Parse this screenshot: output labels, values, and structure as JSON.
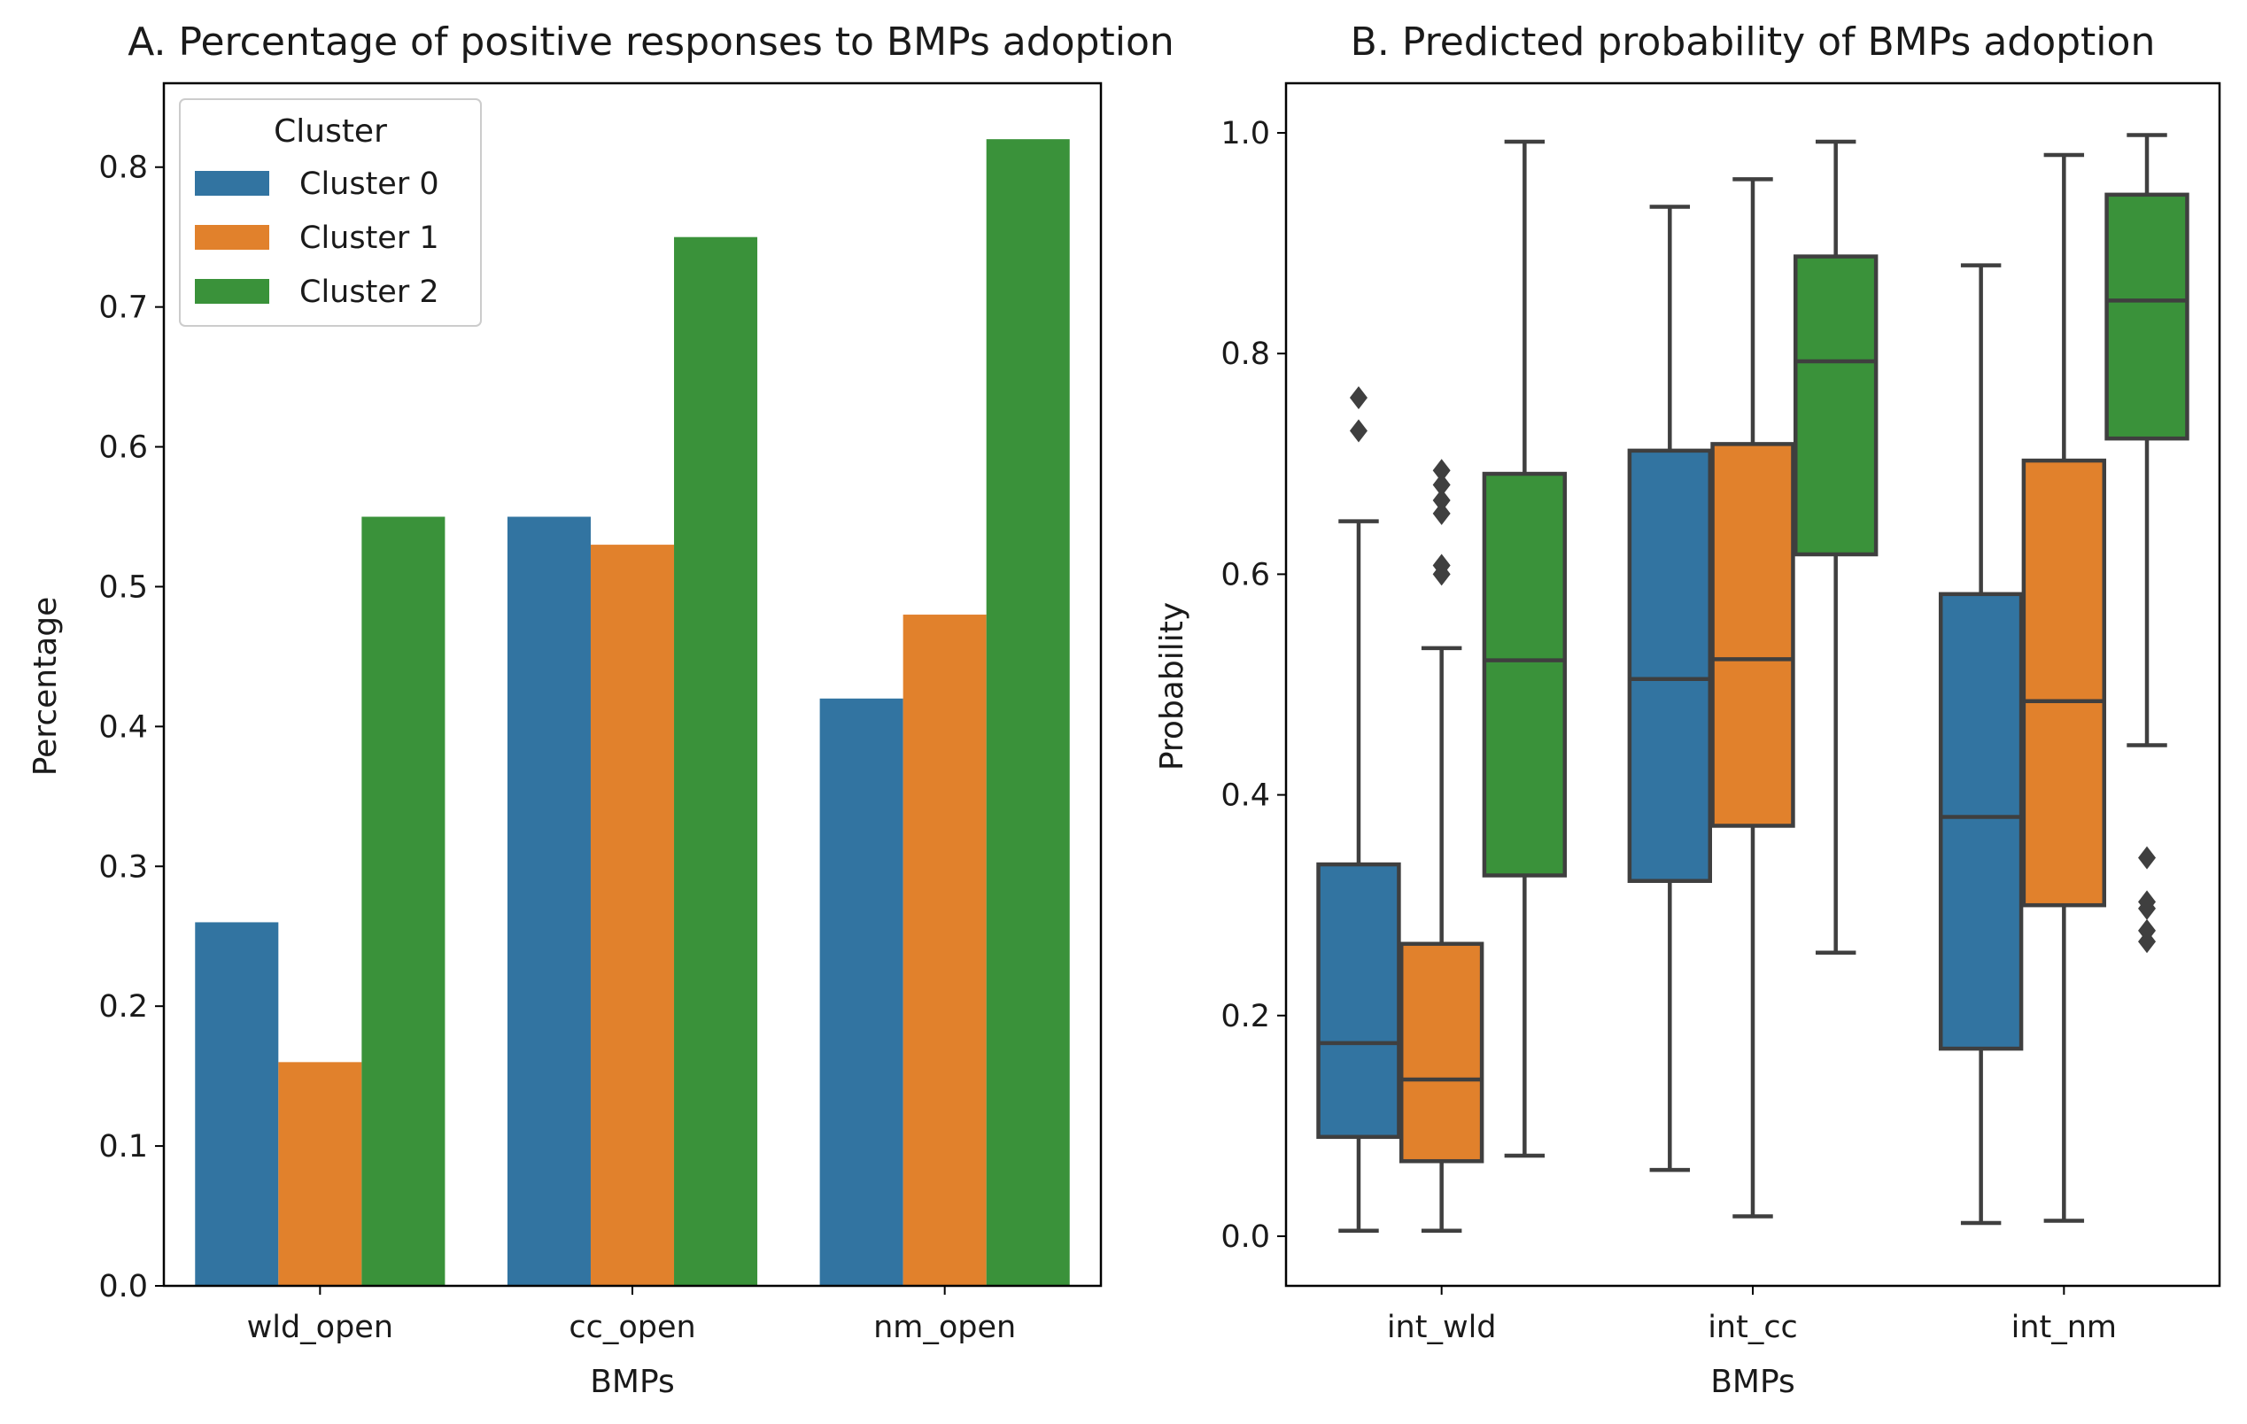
{
  "chart_data": [
    {
      "type": "bar",
      "title": "A. Percentage of positive responses to BMPs adoption",
      "xlabel": "BMPs",
      "ylabel": "Percentage",
      "categories": [
        "wld_open",
        "cc_open",
        "nm_open"
      ],
      "series": [
        {
          "name": "Cluster 0",
          "color": "#3274a1",
          "values": [
            0.26,
            0.55,
            0.42
          ]
        },
        {
          "name": "Cluster 1",
          "color": "#e1812c",
          "values": [
            0.16,
            0.53,
            0.48
          ]
        },
        {
          "name": "Cluster 2",
          "color": "#3a923a",
          "values": [
            0.55,
            0.75,
            0.82
          ]
        }
      ],
      "ylim": [
        0,
        0.86
      ],
      "yticks": [
        "0.0",
        "0.1",
        "0.2",
        "0.3",
        "0.4",
        "0.5",
        "0.6",
        "0.7",
        "0.8"
      ],
      "legend": {
        "title": "Cluster",
        "placement": "top-left"
      },
      "grid": false
    },
    {
      "type": "box",
      "title": "B. Predicted probability of BMPs adoption",
      "xlabel": "BMPs",
      "ylabel": "Probability",
      "categories": [
        "int_wld",
        "int_cc",
        "int_nm"
      ],
      "series": [
        {
          "color": "#3274a1",
          "boxes": [
            {
              "whislo": 0.005,
              "q1": 0.09,
              "med": 0.175,
              "q3": 0.337,
              "whishi": 0.648,
              "fliers": [
                0.73,
                0.76
              ]
            },
            {
              "whislo": 0.06,
              "q1": 0.322,
              "med": 0.505,
              "q3": 0.712,
              "whishi": 0.933,
              "fliers": []
            },
            {
              "whislo": 0.012,
              "q1": 0.17,
              "med": 0.38,
              "q3": 0.582,
              "whishi": 0.88,
              "fliers": []
            }
          ]
        },
        {
          "color": "#e1812c",
          "boxes": [
            {
              "whislo": 0.005,
              "q1": 0.068,
              "med": 0.142,
              "q3": 0.265,
              "whishi": 0.533,
              "fliers": [
                0.6,
                0.608,
                0.655,
                0.667,
                0.681,
                0.694
              ]
            },
            {
              "whislo": 0.018,
              "q1": 0.372,
              "med": 0.523,
              "q3": 0.718,
              "whishi": 0.958,
              "fliers": []
            },
            {
              "whislo": 0.014,
              "q1": 0.3,
              "med": 0.485,
              "q3": 0.703,
              "whishi": 0.98,
              "fliers": []
            }
          ]
        },
        {
          "color": "#3a923a",
          "boxes": [
            {
              "whislo": 0.073,
              "q1": 0.327,
              "med": 0.522,
              "q3": 0.691,
              "whishi": 0.992,
              "fliers": []
            },
            {
              "whislo": 0.257,
              "q1": 0.618,
              "med": 0.793,
              "q3": 0.888,
              "whishi": 0.992,
              "fliers": []
            },
            {
              "whislo": 0.445,
              "q1": 0.723,
              "med": 0.848,
              "q3": 0.944,
              "whishi": 0.998,
              "fliers": [
                0.267,
                0.277,
                0.297,
                0.303,
                0.343
              ]
            }
          ]
        }
      ],
      "ylim": [
        -0.045,
        1.045
      ],
      "yticks": [
        "0.0",
        "0.2",
        "0.4",
        "0.6",
        "0.8",
        "1.0"
      ],
      "grid": false
    }
  ]
}
